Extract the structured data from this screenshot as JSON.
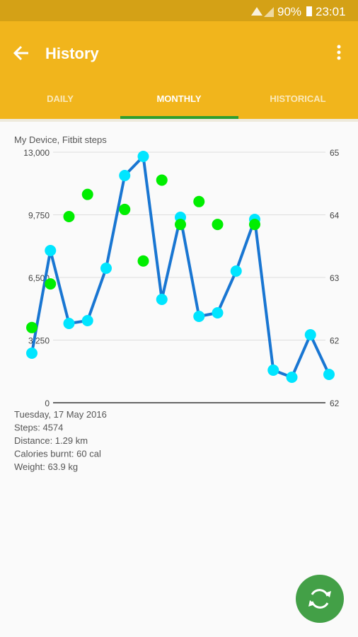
{
  "status_bar": {
    "battery": "90%",
    "time": "23:01"
  },
  "app_bar": {
    "title": "History"
  },
  "tabs": [
    "DAILY",
    "MONTHLY",
    "HISTORICAL"
  ],
  "chart_data": {
    "type": "line",
    "title": "My Device, Fitbit steps",
    "categories": [
      null,
      null,
      null,
      null,
      null,
      null,
      null,
      null,
      null,
      null,
      null,
      null,
      null,
      null,
      null,
      null,
      null
    ],
    "series": [
      {
        "name": "Steps",
        "color": "#00e5ff",
        "line_color": "#1976d2",
        "values": [
          2571,
          7896,
          4113,
          4260,
          6978,
          11789,
          12780,
          5362,
          9622,
          4480,
          4664,
          6831,
          9512,
          1689,
          1322,
          3526,
          1469
        ]
      },
      {
        "name": "Weight",
        "color": "#00ee00",
        "axis": "y2",
        "values": [
          62.55,
          63.16,
          64.1,
          64.41,
          null,
          64.2,
          63.48,
          64.61,
          63.99,
          64.31,
          63.99,
          null,
          63.99,
          null,
          null,
          null,
          null
        ]
      }
    ],
    "ylim": [
      0,
      13000
    ],
    "yticks": [
      0,
      {
        "value": 3250,
        "label": "3,250"
      },
      {
        "value": 6500,
        "label": "6,500"
      },
      {
        "value": 9750,
        "label": "9,750"
      },
      {
        "value": 13000,
        "label": "13,000"
      }
    ],
    "y2lim": [
      61.5,
      65
    ],
    "y2ticks": [
      {
        "value": 61.5,
        "label": "62"
      },
      {
        "value": 62.375,
        "label": "62"
      },
      {
        "value": 63.25,
        "label": "63"
      },
      {
        "value": 64.125,
        "label": "64"
      },
      {
        "value": 65,
        "label": "65"
      }
    ],
    "grid": true
  },
  "details": [
    "Tuesday, 17 May 2016",
    "Steps: 4574",
    "Distance: 1.29 km",
    "Calories burnt: 60 cal",
    "Weight: 63.9 kg"
  ]
}
